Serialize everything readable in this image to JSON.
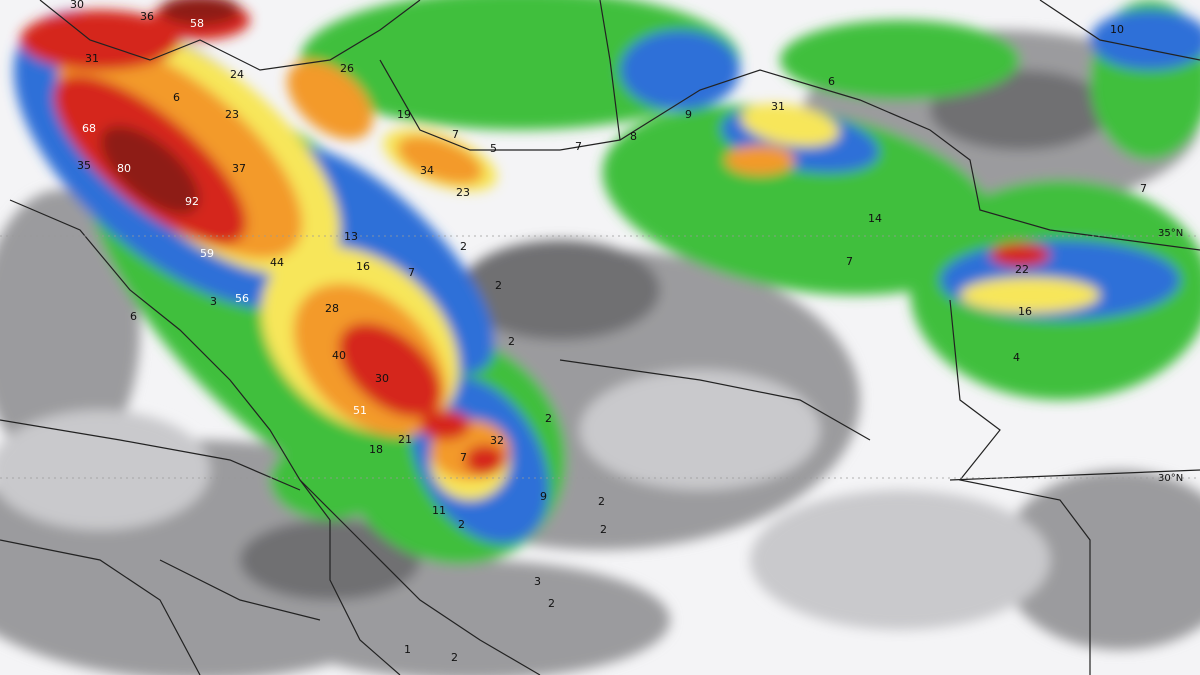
{
  "map": {
    "type": "precipitation-forecast",
    "colors": {
      "background": "#f4f4f6",
      "light_gray": "#c9c9cc",
      "gray": "#9b9b9e",
      "dark_gray": "#6f6f72",
      "green_light": "#8fdc6a",
      "green": "#3fbf3c",
      "green_dark": "#1f9a2c",
      "blue_light": "#7fb8f0",
      "blue": "#2f6fd8",
      "yellow": "#f7e65a",
      "orange": "#f39a2c",
      "red": "#d5271c",
      "dark_red": "#8e1a16",
      "border": "#222222"
    },
    "latitude_labels": [
      "35°N",
      "30°N"
    ],
    "value_labels": [
      "30",
      "36",
      "58",
      "31",
      "24",
      "26",
      "6",
      "23",
      "10",
      "6",
      "31",
      "68",
      "37",
      "19",
      "7",
      "5",
      "7",
      "8",
      "9",
      "35",
      "80",
      "92",
      "34",
      "23",
      "13",
      "2",
      "14",
      "7",
      "59",
      "44",
      "16",
      "7",
      "2",
      "7",
      "22",
      "56",
      "6",
      "3",
      "28",
      "2",
      "16",
      "40",
      "30",
      "51",
      "2",
      "21",
      "32",
      "18",
      "7",
      "9",
      "11",
      "2",
      "2",
      "3",
      "2",
      "1",
      "2",
      "4",
      "2"
    ]
  }
}
